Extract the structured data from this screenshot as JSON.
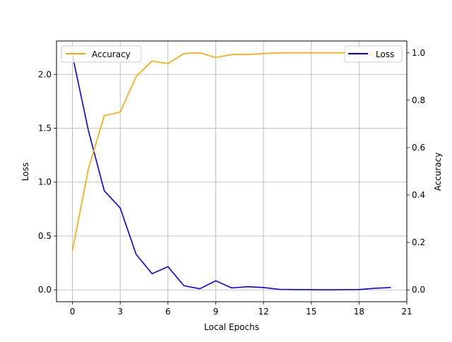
{
  "chart_data": {
    "type": "line",
    "xlabel": "Local Epochs",
    "ylabel_left": "Loss",
    "ylabel_right": "Accuracy",
    "xlim": [
      -1,
      21
    ],
    "ylim_left": [
      -0.11,
      2.31
    ],
    "ylim_right": [
      -0.05,
      1.05
    ],
    "x_ticks": [
      "0",
      "3",
      "6",
      "9",
      "12",
      "15",
      "18",
      "21"
    ],
    "y_ticks_left": [
      "0.0",
      "0.5",
      "1.0",
      "1.5",
      "2.0"
    ],
    "y_ticks_right": [
      "0.0",
      "0.2",
      "0.4",
      "0.6",
      "0.8",
      "1.0"
    ],
    "grid": true,
    "x": [
      0,
      1,
      2,
      3,
      4,
      5,
      6,
      7,
      8,
      9,
      10,
      11,
      12,
      13,
      14,
      15,
      16,
      17,
      18,
      19,
      20
    ],
    "series": [
      {
        "name": "Loss",
        "axis": "left",
        "color": "#0000ff",
        "legend_position": "upper-right",
        "values": [
          2.18,
          1.48,
          0.92,
          0.76,
          0.33,
          0.15,
          0.215,
          0.038,
          0.01,
          0.085,
          0.018,
          0.03,
          0.022,
          0.005,
          0.003,
          0.002,
          0.0,
          0.002,
          0.003,
          0.015,
          0.022
        ]
      },
      {
        "name": "Accuracy",
        "axis": "right",
        "color": "#ffa500",
        "legend_position": "upper-left",
        "values": [
          0.165,
          0.51,
          0.735,
          0.75,
          0.9,
          0.965,
          0.955,
          0.997,
          1.0,
          0.98,
          0.993,
          0.993,
          0.997,
          1.0,
          1.0,
          1.0,
          1.0,
          1.0,
          1.0,
          0.99,
          0.99
        ]
      }
    ]
  }
}
